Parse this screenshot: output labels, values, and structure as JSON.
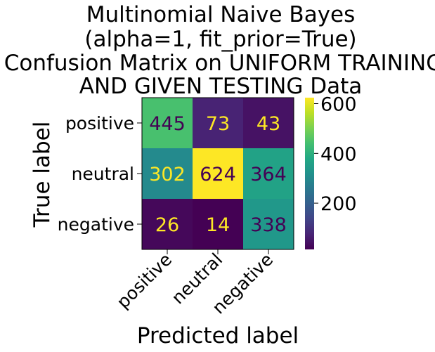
{
  "chart_data": {
    "type": "heatmap",
    "title_lines": [
      "Multinomial Naive Bayes",
      "(alpha=1, fit_prior=True)",
      "Confusion Matrix on UNIFORM TRAINING",
      "AND GIVEN TESTING Data"
    ],
    "xlabel": "Predicted label",
    "ylabel": "True label",
    "x_categories": [
      "positive",
      "neutral",
      "negative"
    ],
    "y_categories": [
      "positive",
      "neutral",
      "negative"
    ],
    "matrix": [
      [
        445,
        73,
        43
      ],
      [
        302,
        624,
        364
      ],
      [
        26,
        14,
        338
      ]
    ],
    "colormap": "viridis",
    "value_range": [
      14,
      624
    ],
    "colorbar_ticks": [
      200,
      400,
      600
    ],
    "text_color_dark": "#440154",
    "text_color_light": "#fde725"
  }
}
